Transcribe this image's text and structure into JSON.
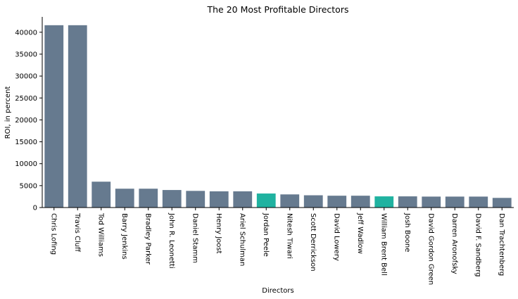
{
  "chart_data": {
    "type": "bar",
    "title": "The 20 Most Profitable Directors",
    "xlabel": "Directors",
    "ylabel": "ROI, in percent",
    "ylim": [
      0,
      43500
    ],
    "yticks": [
      0,
      5000,
      10000,
      15000,
      20000,
      25000,
      30000,
      35000,
      40000
    ],
    "grid": false,
    "categories": [
      "Chris Lofing",
      "Travis Cluff",
      "Tod Williams",
      "Barry Jenkins",
      "Bradley Parker",
      "John R. Leonetti",
      "Daniel Stamm",
      "Henry Joost",
      "Ariel Schulman",
      "Jordan Peele",
      "Nitesh Tiwari",
      "Scott Derrickson",
      "David Lowery",
      "Jeff Wadlow",
      "William Brent Bell",
      "Josh Boone",
      "David Gordon Green",
      "Darren Aronofsky",
      "David F. Sandberg",
      "Dan Trachtenberg"
    ],
    "values": [
      41600,
      41600,
      5900,
      4300,
      4300,
      4000,
      3800,
      3700,
      3700,
      3200,
      3000,
      2800,
      2700,
      2700,
      2550,
      2550,
      2500,
      2500,
      2500,
      2200
    ],
    "colors": {
      "default": "#667a8f",
      "highlight": "#20b2a0"
    },
    "highlighted": [
      "Jordan Peele",
      "William Brent Bell"
    ]
  }
}
